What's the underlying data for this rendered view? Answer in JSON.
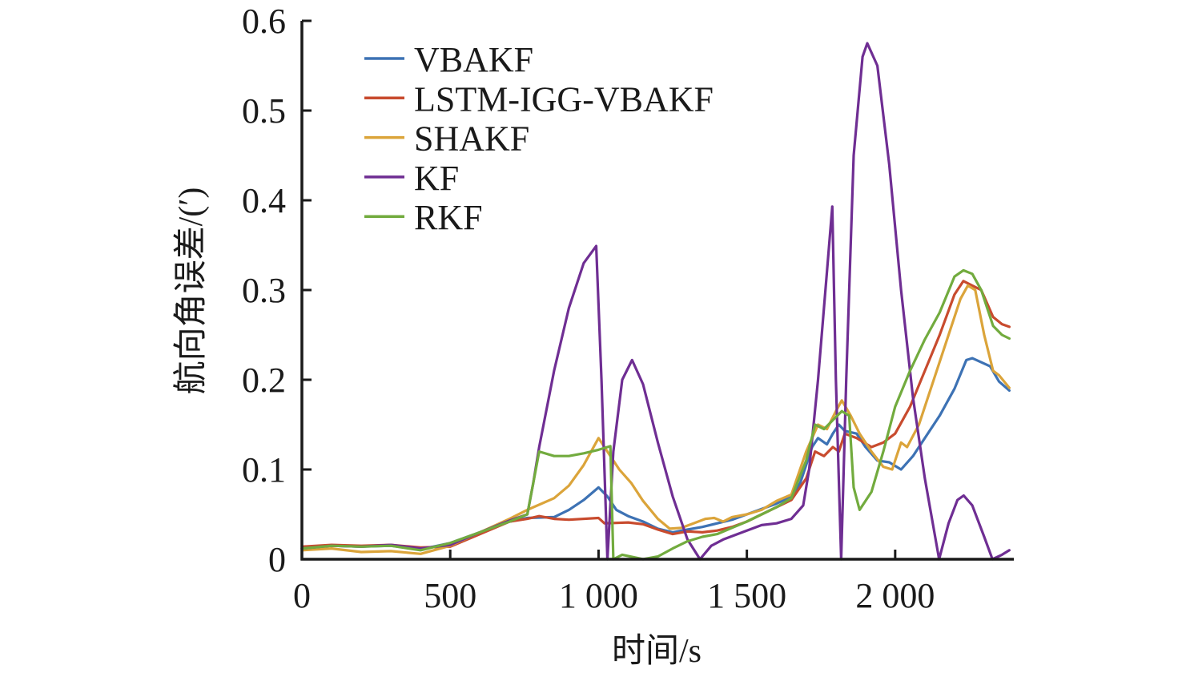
{
  "chart_data": {
    "type": "line",
    "title": "",
    "xlabel": "时间/s",
    "ylabel": "航向角误差/(′)",
    "xlim": [
      0,
      2400
    ],
    "ylim": [
      0,
      0.6
    ],
    "xticks": [
      0,
      500,
      1000,
      1500,
      2000
    ],
    "xtick_labels": [
      "0",
      "500",
      "1 000",
      "1 500",
      "2 000"
    ],
    "yticks": [
      0,
      0.1,
      0.2,
      0.3,
      0.4,
      0.5,
      0.6
    ],
    "ytick_labels": [
      "0",
      "0.1",
      "0.2",
      "0.3",
      "0.4",
      "0.5",
      "0.6"
    ],
    "grid": false,
    "legend_position": "top-left",
    "series": [
      {
        "name": "VBAKF",
        "color": "#3D72B4",
        "points": [
          [
            0,
            0.012
          ],
          [
            100,
            0.015
          ],
          [
            200,
            0.014
          ],
          [
            300,
            0.015
          ],
          [
            400,
            0.011
          ],
          [
            500,
            0.018
          ],
          [
            600,
            0.03
          ],
          [
            700,
            0.042
          ],
          [
            760,
            0.046
          ],
          [
            850,
            0.047
          ],
          [
            900,
            0.055
          ],
          [
            950,
            0.066
          ],
          [
            1000,
            0.08
          ],
          [
            1030,
            0.07
          ],
          [
            1060,
            0.055
          ],
          [
            1100,
            0.048
          ],
          [
            1150,
            0.042
          ],
          [
            1200,
            0.034
          ],
          [
            1250,
            0.03
          ],
          [
            1300,
            0.033
          ],
          [
            1350,
            0.036
          ],
          [
            1400,
            0.04
          ],
          [
            1450,
            0.044
          ],
          [
            1500,
            0.05
          ],
          [
            1550,
            0.056
          ],
          [
            1600,
            0.062
          ],
          [
            1650,
            0.07
          ],
          [
            1680,
            0.085
          ],
          [
            1720,
            0.125
          ],
          [
            1740,
            0.135
          ],
          [
            1770,
            0.128
          ],
          [
            1790,
            0.14
          ],
          [
            1810,
            0.15
          ],
          [
            1830,
            0.143
          ],
          [
            1870,
            0.14
          ],
          [
            1900,
            0.125
          ],
          [
            1940,
            0.11
          ],
          [
            1980,
            0.108
          ],
          [
            2020,
            0.1
          ],
          [
            2060,
            0.115
          ],
          [
            2100,
            0.135
          ],
          [
            2150,
            0.16
          ],
          [
            2200,
            0.19
          ],
          [
            2240,
            0.222
          ],
          [
            2260,
            0.224
          ],
          [
            2300,
            0.218
          ],
          [
            2320,
            0.215
          ],
          [
            2350,
            0.198
          ],
          [
            2385,
            0.188
          ]
        ]
      },
      {
        "name": "LSTM-IGG-VBAKF",
        "color": "#C84B2E",
        "points": [
          [
            0,
            0.014
          ],
          [
            100,
            0.016
          ],
          [
            200,
            0.015
          ],
          [
            300,
            0.016
          ],
          [
            400,
            0.013
          ],
          [
            500,
            0.014
          ],
          [
            600,
            0.028
          ],
          [
            700,
            0.042
          ],
          [
            760,
            0.045
          ],
          [
            800,
            0.048
          ],
          [
            850,
            0.045
          ],
          [
            900,
            0.044
          ],
          [
            1000,
            0.046
          ],
          [
            1020,
            0.04
          ],
          [
            1100,
            0.041
          ],
          [
            1150,
            0.039
          ],
          [
            1200,
            0.033
          ],
          [
            1250,
            0.028
          ],
          [
            1300,
            0.031
          ],
          [
            1350,
            0.03
          ],
          [
            1400,
            0.032
          ],
          [
            1450,
            0.036
          ],
          [
            1500,
            0.042
          ],
          [
            1550,
            0.05
          ],
          [
            1600,
            0.058
          ],
          [
            1650,
            0.066
          ],
          [
            1700,
            0.09
          ],
          [
            1730,
            0.12
          ],
          [
            1760,
            0.115
          ],
          [
            1790,
            0.125
          ],
          [
            1810,
            0.12
          ],
          [
            1830,
            0.14
          ],
          [
            1870,
            0.135
          ],
          [
            1920,
            0.125
          ],
          [
            1960,
            0.13
          ],
          [
            2000,
            0.14
          ],
          [
            2050,
            0.17
          ],
          [
            2100,
            0.21
          ],
          [
            2150,
            0.25
          ],
          [
            2200,
            0.295
          ],
          [
            2230,
            0.31
          ],
          [
            2260,
            0.305
          ],
          [
            2290,
            0.3
          ],
          [
            2330,
            0.27
          ],
          [
            2360,
            0.262
          ],
          [
            2385,
            0.259
          ]
        ]
      },
      {
        "name": "SHAKF",
        "color": "#DBA43A",
        "points": [
          [
            0,
            0.01
          ],
          [
            100,
            0.012
          ],
          [
            200,
            0.008
          ],
          [
            300,
            0.009
          ],
          [
            400,
            0.006
          ],
          [
            500,
            0.015
          ],
          [
            600,
            0.03
          ],
          [
            700,
            0.045
          ],
          [
            760,
            0.055
          ],
          [
            850,
            0.068
          ],
          [
            900,
            0.082
          ],
          [
            950,
            0.105
          ],
          [
            1000,
            0.135
          ],
          [
            1030,
            0.12
          ],
          [
            1070,
            0.1
          ],
          [
            1110,
            0.085
          ],
          [
            1150,
            0.065
          ],
          [
            1200,
            0.045
          ],
          [
            1240,
            0.034
          ],
          [
            1280,
            0.035
          ],
          [
            1320,
            0.04
          ],
          [
            1360,
            0.045
          ],
          [
            1390,
            0.046
          ],
          [
            1420,
            0.042
          ],
          [
            1450,
            0.047
          ],
          [
            1500,
            0.05
          ],
          [
            1550,
            0.055
          ],
          [
            1600,
            0.065
          ],
          [
            1650,
            0.072
          ],
          [
            1700,
            0.12
          ],
          [
            1740,
            0.15
          ],
          [
            1770,
            0.145
          ],
          [
            1800,
            0.165
          ],
          [
            1820,
            0.177
          ],
          [
            1850,
            0.16
          ],
          [
            1880,
            0.14
          ],
          [
            1920,
            0.12
          ],
          [
            1960,
            0.103
          ],
          [
            1990,
            0.1
          ],
          [
            2020,
            0.13
          ],
          [
            2040,
            0.125
          ],
          [
            2080,
            0.15
          ],
          [
            2130,
            0.2
          ],
          [
            2180,
            0.25
          ],
          [
            2220,
            0.29
          ],
          [
            2245,
            0.305
          ],
          [
            2270,
            0.3
          ],
          [
            2300,
            0.25
          ],
          [
            2330,
            0.21
          ],
          [
            2350,
            0.205
          ],
          [
            2385,
            0.191
          ]
        ]
      },
      {
        "name": "KF",
        "color": "#6F2E93",
        "points": [
          [
            0,
            0.012
          ],
          [
            100,
            0.015
          ],
          [
            200,
            0.014
          ],
          [
            300,
            0.016
          ],
          [
            400,
            0.012
          ],
          [
            500,
            0.016
          ],
          [
            600,
            0.03
          ],
          [
            700,
            0.043
          ],
          [
            760,
            0.05
          ],
          [
            780,
            0.085
          ],
          [
            800,
            0.125
          ],
          [
            850,
            0.21
          ],
          [
            900,
            0.28
          ],
          [
            950,
            0.33
          ],
          [
            992,
            0.349
          ],
          [
            1010,
            0.2
          ],
          [
            1030,
            0.0
          ],
          [
            1050,
            0.12
          ],
          [
            1080,
            0.2
          ],
          [
            1113,
            0.222
          ],
          [
            1150,
            0.195
          ],
          [
            1200,
            0.13
          ],
          [
            1250,
            0.07
          ],
          [
            1300,
            0.022
          ],
          [
            1342,
            0.0
          ],
          [
            1380,
            0.015
          ],
          [
            1420,
            0.022
          ],
          [
            1500,
            0.032
          ],
          [
            1550,
            0.038
          ],
          [
            1600,
            0.04
          ],
          [
            1650,
            0.045
          ],
          [
            1690,
            0.06
          ],
          [
            1710,
            0.1
          ],
          [
            1740,
            0.2
          ],
          [
            1770,
            0.32
          ],
          [
            1788,
            0.393
          ],
          [
            1800,
            0.2
          ],
          [
            1818,
            0.0
          ],
          [
            1835,
            0.2
          ],
          [
            1860,
            0.45
          ],
          [
            1890,
            0.56
          ],
          [
            1906,
            0.575
          ],
          [
            1940,
            0.55
          ],
          [
            1980,
            0.44
          ],
          [
            2020,
            0.3
          ],
          [
            2060,
            0.18
          ],
          [
            2100,
            0.09
          ],
          [
            2148,
            0.0
          ],
          [
            2180,
            0.04
          ],
          [
            2210,
            0.066
          ],
          [
            2231,
            0.071
          ],
          [
            2260,
            0.06
          ],
          [
            2300,
            0.025
          ],
          [
            2328,
            0.0
          ],
          [
            2360,
            0.005
          ],
          [
            2385,
            0.01
          ]
        ]
      },
      {
        "name": "RKF",
        "color": "#72AB3E",
        "points": [
          [
            0,
            0.012
          ],
          [
            100,
            0.015
          ],
          [
            200,
            0.014
          ],
          [
            300,
            0.015
          ],
          [
            400,
            0.01
          ],
          [
            500,
            0.018
          ],
          [
            600,
            0.03
          ],
          [
            700,
            0.042
          ],
          [
            760,
            0.05
          ],
          [
            780,
            0.085
          ],
          [
            800,
            0.12
          ],
          [
            850,
            0.115
          ],
          [
            900,
            0.115
          ],
          [
            950,
            0.118
          ],
          [
            1000,
            0.122
          ],
          [
            1040,
            0.126
          ],
          [
            1050,
            0.0
          ],
          [
            1080,
            0.005
          ],
          [
            1150,
            0.0
          ],
          [
            1200,
            0.003
          ],
          [
            1250,
            0.012
          ],
          [
            1300,
            0.02
          ],
          [
            1350,
            0.025
          ],
          [
            1400,
            0.028
          ],
          [
            1450,
            0.035
          ],
          [
            1500,
            0.042
          ],
          [
            1550,
            0.05
          ],
          [
            1600,
            0.058
          ],
          [
            1650,
            0.068
          ],
          [
            1700,
            0.11
          ],
          [
            1730,
            0.15
          ],
          [
            1760,
            0.145
          ],
          [
            1790,
            0.155
          ],
          [
            1820,
            0.165
          ],
          [
            1845,
            0.16
          ],
          [
            1860,
            0.08
          ],
          [
            1880,
            0.055
          ],
          [
            1920,
            0.075
          ],
          [
            1960,
            0.12
          ],
          [
            2000,
            0.17
          ],
          [
            2050,
            0.21
          ],
          [
            2100,
            0.245
          ],
          [
            2150,
            0.275
          ],
          [
            2200,
            0.315
          ],
          [
            2230,
            0.322
          ],
          [
            2260,
            0.318
          ],
          [
            2290,
            0.3
          ],
          [
            2330,
            0.26
          ],
          [
            2360,
            0.25
          ],
          [
            2385,
            0.246
          ]
        ]
      }
    ]
  }
}
